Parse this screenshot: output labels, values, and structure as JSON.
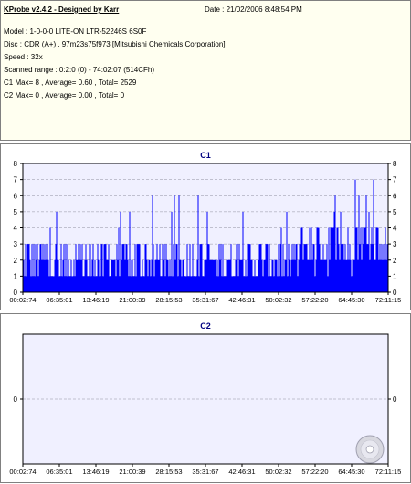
{
  "header": {
    "title": "KProbe v2.4.2 - Designed by Karr",
    "date": "Date : 21/02/2006 8:48:54 PM",
    "model": "Model : 1-0-0-0 LITE-ON LTR-52246S      6S0F",
    "disc": "Disc : CDR (A+) , 97m23s75f973 [Mitsubishi Chemicals Corporation]",
    "speed": "Speed : 32x",
    "scanned_range": "Scanned range : 0:2:0 (0) - 74:02:07 (514CFh)",
    "c1_stats": "C1 Max= 8 , Average= 0.60 , Total= 2529",
    "c2_stats": "C2 Max= 0 , Average= 0.00 , Total= 0"
  },
  "colors": {
    "bar": "#0000ff",
    "plot_bg": "#f0f0ff",
    "title": "#000080",
    "info_bg": "#fffff0"
  },
  "chart_data": [
    {
      "type": "bar",
      "title": "C1",
      "xlabel": "",
      "ylabel": "",
      "x_ticks": [
        "00:02:74",
        "06:35:01",
        "13:46:19",
        "21:00:39",
        "28:15:53",
        "35:31:67",
        "42:46:31",
        "50:02:32",
        "57:22:20",
        "64:45:30",
        "72:11:15"
      ],
      "y_ticks": [
        0,
        1,
        2,
        3,
        4,
        5,
        6,
        7,
        8
      ],
      "ylim": [
        0,
        8
      ],
      "xlim_minutes": [
        0.05,
        74.03
      ],
      "grid": true,
      "density_profile": [
        {
          "x_start": 0,
          "x_end": 40,
          "typical": [
            1,
            2,
            3
          ],
          "max": 6
        },
        {
          "x_start": 40,
          "x_end": 56,
          "typical": [
            1,
            2,
            3
          ],
          "max": 5
        },
        {
          "x_start": 56,
          "x_end": 74,
          "typical": [
            2,
            3,
            4
          ],
          "max": 8
        }
      ],
      "summary": {
        "max": 8,
        "average": 0.6,
        "total": 2529
      }
    },
    {
      "type": "bar",
      "title": "C2",
      "xlabel": "",
      "ylabel": "",
      "x_ticks": [
        "00:02:74",
        "06:35:01",
        "13:46:19",
        "21:00:39",
        "28:15:53",
        "35:31:67",
        "42:46:31",
        "50:02:32",
        "57:22:20",
        "64:45:30",
        "72:11:15"
      ],
      "y_ticks": [
        0
      ],
      "ylim": [
        -1,
        1
      ],
      "grid": true,
      "summary": {
        "max": 0,
        "average": 0.0,
        "total": 0
      }
    }
  ]
}
